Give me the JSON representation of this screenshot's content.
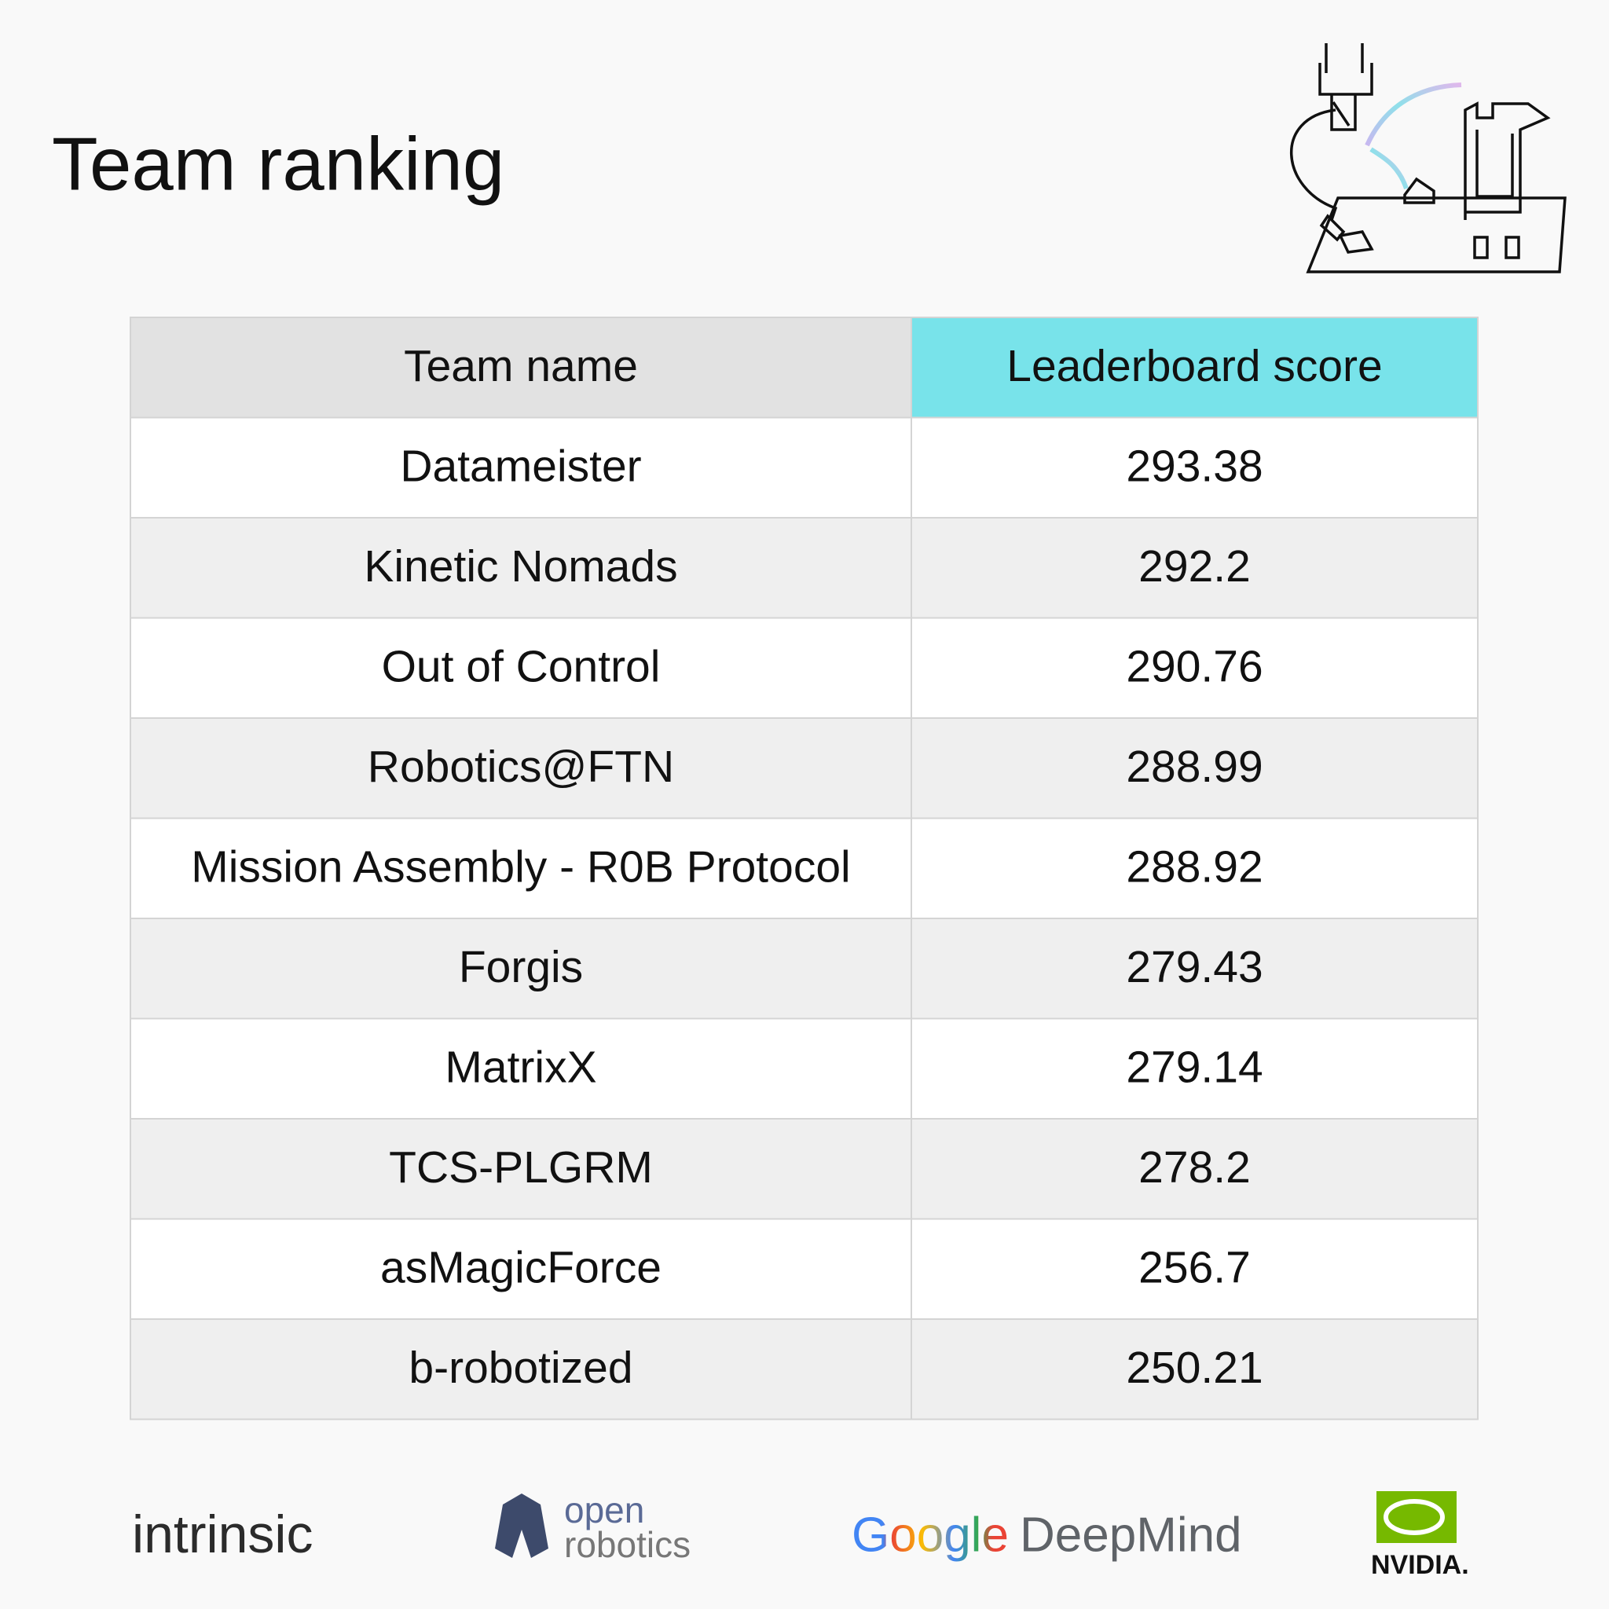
{
  "title": "Team ranking",
  "table": {
    "header": [
      "Team name",
      "Leaderboard score"
    ],
    "rows": [
      [
        "Datameister",
        293.38
      ],
      [
        "Kinetic Nomads",
        292.2
      ],
      [
        "Out of Control",
        290.76
      ],
      [
        "Robotics@FTN",
        288.99
      ],
      [
        "Mission Assembly - R0B Protocol",
        288.92
      ],
      [
        "Forgis",
        279.43
      ],
      [
        "MatrixX",
        279.14
      ],
      [
        "TCS-PLGRM",
        278.2
      ],
      [
        "asMagicForce",
        256.7
      ],
      [
        "b-robotized",
        250.21
      ]
    ]
  },
  "logos": {
    "intrinsic": "intrinsic",
    "open_robotics": [
      "open",
      "robotics"
    ],
    "google": "Google",
    "deepmind": "DeepMind",
    "nvidia": "NVIDIA."
  }
}
